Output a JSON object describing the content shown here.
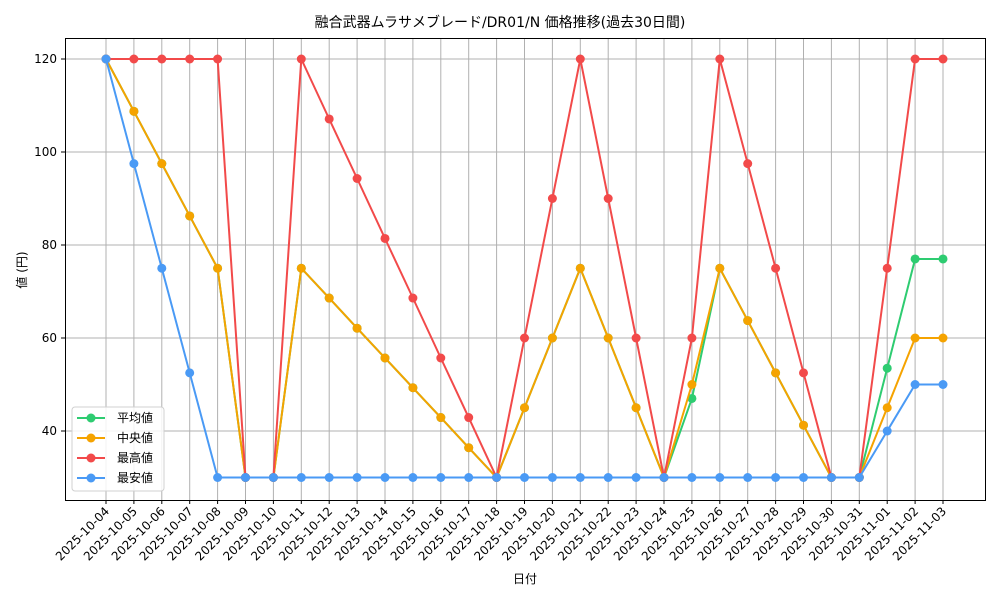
{
  "chart_data": {
    "type": "line",
    "title": "融合武器ムラサメブレード/DR01/N 価格推移(過去30日間)",
    "xlabel": "日付",
    "ylabel": "値 (円)",
    "ylim": [
      25,
      124
    ],
    "yticks": [
      40,
      60,
      80,
      100,
      120
    ],
    "grid": true,
    "legend_position": "lower left",
    "x": [
      "2025-10-04",
      "2025-10-05",
      "2025-10-06",
      "2025-10-07",
      "2025-10-08",
      "2025-10-09",
      "2025-10-10",
      "2025-10-11",
      "2025-10-12",
      "2025-10-13",
      "2025-10-14",
      "2025-10-15",
      "2025-10-16",
      "2025-10-17",
      "2025-10-18",
      "2025-10-19",
      "2025-10-20",
      "2025-10-21",
      "2025-10-22",
      "2025-10-23",
      "2025-10-24",
      "2025-10-25",
      "2025-10-26",
      "2025-10-27",
      "2025-10-28",
      "2025-10-29",
      "2025-10-30",
      "2025-10-31",
      "2025-11-01",
      "2025-11-02",
      "2025-11-03"
    ],
    "series": [
      {
        "name": "平均値",
        "color": "#2ecc71",
        "values": [
          120,
          108.75,
          97.5,
          86.25,
          75,
          30,
          30,
          75,
          68.6,
          62.1,
          55.7,
          49.3,
          42.9,
          36.4,
          30,
          45,
          60,
          75,
          60,
          45,
          30,
          47,
          75,
          63.75,
          52.5,
          41.25,
          30,
          30,
          53.5,
          77,
          77
        ]
      },
      {
        "name": "中央値",
        "color": "#f5a300",
        "values": [
          120,
          108.75,
          97.5,
          86.25,
          75,
          30,
          30,
          75,
          68.6,
          62.1,
          55.7,
          49.3,
          42.9,
          36.4,
          30,
          45,
          60,
          75,
          60,
          45,
          30,
          50,
          75,
          63.75,
          52.5,
          41.25,
          30,
          30,
          45,
          60,
          60
        ]
      },
      {
        "name": "最高値",
        "color": "#f24a4a",
        "values": [
          120,
          120,
          120,
          120,
          120,
          30,
          30,
          120,
          107.1,
          94.3,
          81.4,
          68.6,
          55.7,
          42.9,
          30,
          60,
          90,
          120,
          90,
          60,
          30,
          60,
          120,
          97.5,
          75,
          52.5,
          30,
          30,
          75,
          120,
          120
        ]
      },
      {
        "name": "最安値",
        "color": "#4a9af5",
        "values": [
          120,
          97.5,
          75,
          52.5,
          30,
          30,
          30,
          30,
          30,
          30,
          30,
          30,
          30,
          30,
          30,
          30,
          30,
          30,
          30,
          30,
          30,
          30,
          30,
          30,
          30,
          30,
          30,
          30,
          40,
          50,
          50
        ]
      }
    ]
  }
}
